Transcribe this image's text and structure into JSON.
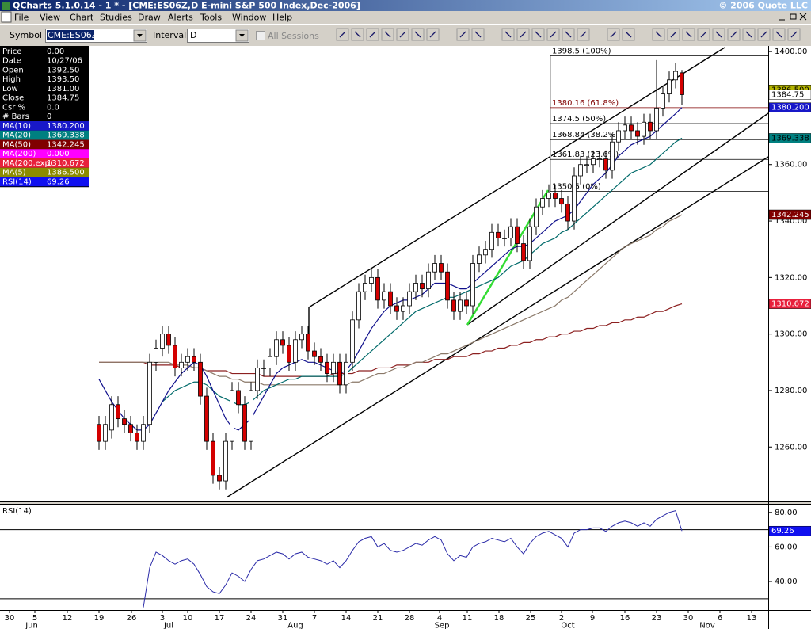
{
  "window": {
    "title": "QCharts 5.1.0.14 - 1 * - [CME:ES06Z,D E-mini S&P 500 Index,Dec-2006]",
    "copyright": "© 2006 Quote LLC"
  },
  "menu": [
    "File",
    "View",
    "Chart",
    "Studies",
    "Draw",
    "Alerts",
    "Tools",
    "Window",
    "Help"
  ],
  "toolbar": {
    "symbol_label": "Symbol",
    "symbol": "CME:ES06Z",
    "interval_label": "Interval",
    "interval": "D",
    "sessions": "All Sessions"
  },
  "info_panel": [
    {
      "label": "Price",
      "value": "0.00"
    },
    {
      "label": "Date",
      "value": "10/27/06"
    },
    {
      "label": "Open",
      "value": "1392.50"
    },
    {
      "label": "High",
      "value": "1393.50"
    },
    {
      "label": "Low",
      "value": "1381.00"
    },
    {
      "label": "Close",
      "value": "1384.75"
    },
    {
      "label": "Csr %",
      "value": "0.0"
    },
    {
      "label": "# Bars",
      "value": "0"
    },
    {
      "label": "MA(10)",
      "value": "1380.200",
      "color": "#1818c8"
    },
    {
      "label": "MA(20)",
      "value": "1369.338",
      "color": "#008080"
    },
    {
      "label": "MA(50)",
      "value": "1342.245",
      "color": "#800000"
    },
    {
      "label": "MA(200)",
      "value": "0.000",
      "color": "#ff00ff"
    },
    {
      "label": "MA(200,exp)",
      "value": "1310.672",
      "color": "#e8203c"
    },
    {
      "label": "MA(5)",
      "value": "1386.500",
      "color": "#8c8c00"
    },
    {
      "label": "RSI(14)",
      "value": "69.26",
      "color": "#1010f0"
    }
  ],
  "chart_data": [
    {
      "type": "candlestick",
      "open": [
        1268,
        1262,
        1266,
        1275,
        1270,
        1268,
        1265,
        1262,
        1268,
        1290,
        1295,
        1300,
        1296,
        1288,
        1290,
        1292,
        1290,
        1278,
        1262,
        1250,
        1248,
        1262,
        1280,
        1275,
        1262,
        1280,
        1288,
        1288,
        1292,
        1298,
        1296,
        1290,
        1298,
        1300,
        1294,
        1292,
        1290,
        1286,
        1290,
        1282,
        1290,
        1305,
        1315,
        1318,
        1320,
        1312,
        1315,
        1310,
        1308,
        1310,
        1315,
        1318,
        1316,
        1322,
        1325,
        1322,
        1312,
        1308,
        1312,
        1310,
        1325,
        1328,
        1330,
        1336,
        1334,
        1334,
        1338,
        1332,
        1326,
        1338,
        1345,
        1348,
        1350,
        1348,
        1346,
        1340,
        1356,
        1360,
        1360,
        1362,
        1362,
        1358,
        1368,
        1372,
        1374,
        1372,
        1370,
        1375,
        1372,
        1380,
        1385,
        1390,
        1392.5
      ],
      "high": [
        1271,
        1271,
        1278,
        1278,
        1273,
        1271,
        1268,
        1271,
        1293,
        1298,
        1303,
        1303,
        1299,
        1293,
        1295,
        1295,
        1293,
        1281,
        1265,
        1253,
        1265,
        1283,
        1283,
        1278,
        1283,
        1291,
        1291,
        1295,
        1301,
        1301,
        1299,
        1301,
        1303,
        1303,
        1297,
        1295,
        1293,
        1293,
        1293,
        1293,
        1308,
        1318,
        1321,
        1323,
        1323,
        1318,
        1318,
        1313,
        1313,
        1318,
        1321,
        1321,
        1325,
        1328,
        1328,
        1325,
        1315,
        1315,
        1315,
        1328,
        1331,
        1333,
        1339,
        1339,
        1337,
        1341,
        1341,
        1335,
        1341,
        1348,
        1351,
        1353,
        1353,
        1351,
        1349,
        1359,
        1363,
        1363,
        1365,
        1365,
        1365,
        1371,
        1375,
        1377,
        1377,
        1375,
        1378,
        1378,
        1397,
        1388,
        1393,
        1396,
        1393.5
      ],
      "low": [
        1259,
        1259,
        1263,
        1267,
        1265,
        1262,
        1259,
        1259,
        1265,
        1287,
        1292,
        1293,
        1285,
        1285,
        1287,
        1287,
        1275,
        1259,
        1247,
        1245,
        1245,
        1259,
        1272,
        1259,
        1259,
        1277,
        1285,
        1285,
        1289,
        1293,
        1287,
        1287,
        1295,
        1291,
        1289,
        1287,
        1283,
        1283,
        1279,
        1279,
        1287,
        1302,
        1312,
        1315,
        1309,
        1309,
        1307,
        1305,
        1305,
        1307,
        1312,
        1313,
        1313,
        1319,
        1319,
        1309,
        1305,
        1305,
        1307,
        1307,
        1322,
        1325,
        1327,
        1331,
        1331,
        1331,
        1329,
        1323,
        1323,
        1335,
        1342,
        1345,
        1345,
        1343,
        1337,
        1337,
        1353,
        1357,
        1357,
        1359,
        1355,
        1355,
        1365,
        1369,
        1369,
        1367,
        1367,
        1369,
        1369,
        1377,
        1382,
        1387,
        1381
      ],
      "close": [
        1262,
        1268,
        1275,
        1270,
        1268,
        1265,
        1262,
        1268,
        1290,
        1295,
        1300,
        1296,
        1288,
        1290,
        1292,
        1290,
        1278,
        1262,
        1250,
        1248,
        1262,
        1280,
        1275,
        1262,
        1280,
        1288,
        1288,
        1292,
        1298,
        1296,
        1290,
        1298,
        1300,
        1294,
        1292,
        1290,
        1286,
        1290,
        1282,
        1290,
        1305,
        1315,
        1318,
        1320,
        1312,
        1315,
        1310,
        1308,
        1310,
        1315,
        1318,
        1316,
        1322,
        1325,
        1322,
        1312,
        1308,
        1312,
        1310,
        1325,
        1328,
        1330,
        1336,
        1334,
        1334,
        1338,
        1332,
        1326,
        1338,
        1345,
        1348,
        1350,
        1348,
        1346,
        1340,
        1356,
        1360,
        1360,
        1362,
        1362,
        1358,
        1368,
        1372,
        1374,
        1372,
        1370,
        1375,
        1372,
        1380,
        1385,
        1390,
        1393,
        1384.75
      ],
      "up_color": "#ffffff",
      "down_color": "#d40000",
      "series": [
        {
          "color": "#8c2020",
          "values": [
            1290,
            1290,
            1290,
            1290,
            1290,
            1290,
            1290,
            1290,
            1289,
            1289,
            1289,
            1289,
            1289,
            1288,
            1288,
            1288,
            1288,
            1287,
            1287,
            1287,
            1287,
            1286,
            1286,
            1286,
            1286,
            1286,
            1285,
            1285,
            1285,
            1285,
            1285,
            1285,
            1285,
            1285,
            1285,
            1285,
            1285,
            1286,
            1286,
            1286,
            1286,
            1287,
            1287,
            1287,
            1288,
            1288,
            1288,
            1289,
            1289,
            1289,
            1290,
            1290,
            1290,
            1291,
            1291,
            1291,
            1292,
            1292,
            1292,
            1293,
            1293,
            1294,
            1294,
            1295,
            1295,
            1296,
            1296,
            1297,
            1297,
            1298,
            1298,
            1299,
            1299,
            1300,
            1300,
            1301,
            1301,
            1302,
            1302,
            1303,
            1303,
            1304,
            1304,
            1305,
            1305,
            1306,
            1306,
            1307,
            1308,
            1308,
            1309,
            1310,
            1310.672
          ]
        },
        {
          "color": "#8a7868",
          "values": [
            1290,
            1290,
            1290,
            1290,
            1290,
            1290,
            1290,
            1290,
            1290,
            1290,
            1290,
            1290,
            1289,
            1289,
            1289,
            1288,
            1288,
            1287,
            1286,
            1285,
            1285,
            1284,
            1284,
            1283,
            1283,
            1283,
            1282,
            1282,
            1282,
            1282,
            1282,
            1282,
            1282,
            1282,
            1282,
            1282,
            1282,
            1282,
            1282,
            1282,
            1283,
            1283,
            1284,
            1285,
            1286,
            1286,
            1287,
            1288,
            1288,
            1289,
            1290,
            1290,
            1291,
            1292,
            1293,
            1293,
            1294,
            1295,
            1296,
            1297,
            1298,
            1299,
            1300,
            1301,
            1302,
            1303,
            1304,
            1305,
            1306,
            1307,
            1308,
            1309,
            1310,
            1312,
            1313,
            1315,
            1317,
            1319,
            1321,
            1323,
            1325,
            1327,
            1329,
            1331,
            1332,
            1333,
            1334,
            1335,
            1337,
            1338,
            1340,
            1341,
            1342.245
          ]
        },
        {
          "color": "#006a6a",
          "values": [
            null,
            null,
            null,
            null,
            null,
            null,
            null,
            null,
            null,
            null,
            1276,
            1278,
            1280,
            1281,
            1282,
            1283,
            1283,
            1282,
            1280,
            1278,
            1277,
            1276,
            1275,
            1275,
            1276,
            1278,
            1280,
            1281,
            1282,
            1283,
            1284,
            1284,
            1285,
            1285,
            1285,
            1285,
            1285,
            1285,
            1285,
            1286,
            1288,
            1290,
            1292,
            1294,
            1296,
            1298,
            1300,
            1302,
            1304,
            1306,
            1308,
            1309,
            1310,
            1311,
            1312,
            1313,
            1313,
            1314,
            1315,
            1316,
            1317,
            1318,
            1319,
            1320,
            1322,
            1324,
            1325,
            1326,
            1328,
            1330,
            1332,
            1333,
            1334,
            1336,
            1337,
            1339,
            1341,
            1343,
            1345,
            1347,
            1349,
            1351,
            1353,
            1355,
            1357,
            1358,
            1359,
            1360,
            1362,
            1364,
            1366,
            1368,
            1369.338
          ]
        },
        {
          "color": "#10108c",
          "values": [
            1284,
            1280,
            1276,
            1273,
            1270,
            1268,
            1266,
            1266,
            1268,
            1272,
            1276,
            1280,
            1283,
            1286,
            1288,
            1290,
            1289,
            1285,
            1280,
            1275,
            1270,
            1267,
            1266,
            1268,
            1270,
            1274,
            1278,
            1282,
            1286,
            1288,
            1289,
            1290,
            1291,
            1290,
            1290,
            1289,
            1288,
            1287,
            1286,
            1287,
            1290,
            1294,
            1298,
            1302,
            1305,
            1308,
            1310,
            1311,
            1312,
            1312,
            1313,
            1314,
            1316,
            1318,
            1318,
            1318,
            1317,
            1316,
            1316,
            1318,
            1320,
            1322,
            1324,
            1326,
            1328,
            1330,
            1331,
            1331,
            1332,
            1334,
            1336,
            1338,
            1340,
            1341,
            1342,
            1344,
            1347,
            1350,
            1353,
            1355,
            1357,
            1360,
            1363,
            1365,
            1367,
            1368,
            1369,
            1370,
            1372,
            1374,
            1376,
            1378,
            1380.2
          ]
        }
      ],
      "ylim": [
        1241,
        1402
      ],
      "yticks": [
        {
          "value": 1400,
          "label": "1400.00"
        },
        {
          "value": 1360,
          "label": "1360.00"
        },
        {
          "value": 1340,
          "label": "1340.00"
        },
        {
          "value": 1320,
          "label": "1320.00"
        },
        {
          "value": 1300,
          "label": "1300.00"
        },
        {
          "value": 1280,
          "label": "1280.00"
        },
        {
          "value": 1260,
          "label": "1260.00"
        }
      ],
      "fib_levels": [
        {
          "value": 1398.5,
          "label": "1398.5 (100%)",
          "color": "#000000"
        },
        {
          "value": 1380.16,
          "label": "1380.16 (61.8%)",
          "color": "#800000"
        },
        {
          "value": 1374.5,
          "label": "1374.5 (50%)",
          "color": "#000000"
        },
        {
          "value": 1368.84,
          "label": "1368.84 (38.2%)",
          "color": "#000000"
        },
        {
          "value": 1361.83,
          "label": "1361.83 (23.6%)",
          "color": "#000000"
        },
        {
          "value": 1350.5,
          "label": "1350.5 (0%)",
          "color": "#000000"
        }
      ],
      "date_labels": [
        "30",
        "5",
        "12",
        "19",
        "26",
        "3",
        "10",
        "17",
        "24",
        "31",
        "7",
        "14",
        "21",
        "28",
        "4",
        "11",
        "18",
        "25",
        "2",
        "9",
        "16",
        "23",
        "30",
        "6",
        "13"
      ],
      "month_labels": [
        "Jun",
        "Jul",
        "Aug",
        "Sep",
        "Oct",
        "Nov"
      ]
    },
    {
      "type": "line",
      "title": "RSI(14)",
      "color": "#2a2aa8",
      "values": [
        null,
        null,
        null,
        null,
        null,
        null,
        null,
        25,
        48,
        57,
        55,
        52,
        50,
        52,
        53,
        50,
        44,
        37,
        34,
        33,
        38,
        45,
        43,
        40,
        47,
        52,
        53,
        55,
        57,
        56,
        53,
        56,
        57,
        54,
        53,
        52,
        50,
        52,
        48,
        52,
        58,
        63,
        65,
        66,
        60,
        62,
        58,
        57,
        58,
        60,
        62,
        61,
        64,
        66,
        64,
        56,
        52,
        55,
        54,
        60,
        62,
        63,
        65,
        64,
        63,
        65,
        60,
        56,
        62,
        66,
        68,
        69,
        67,
        65,
        60,
        68,
        70,
        70,
        71,
        71,
        69,
        72,
        74,
        75,
        74,
        72,
        74,
        72,
        76,
        78,
        80,
        81,
        69.26
      ],
      "ylim": [
        23.5,
        84.5
      ],
      "yticks": [
        {
          "value": 80,
          "label": "80.00"
        },
        {
          "value": 60,
          "label": "60.00"
        },
        {
          "value": 40,
          "label": "40.00"
        }
      ],
      "levels": [
        70,
        30
      ]
    }
  ]
}
